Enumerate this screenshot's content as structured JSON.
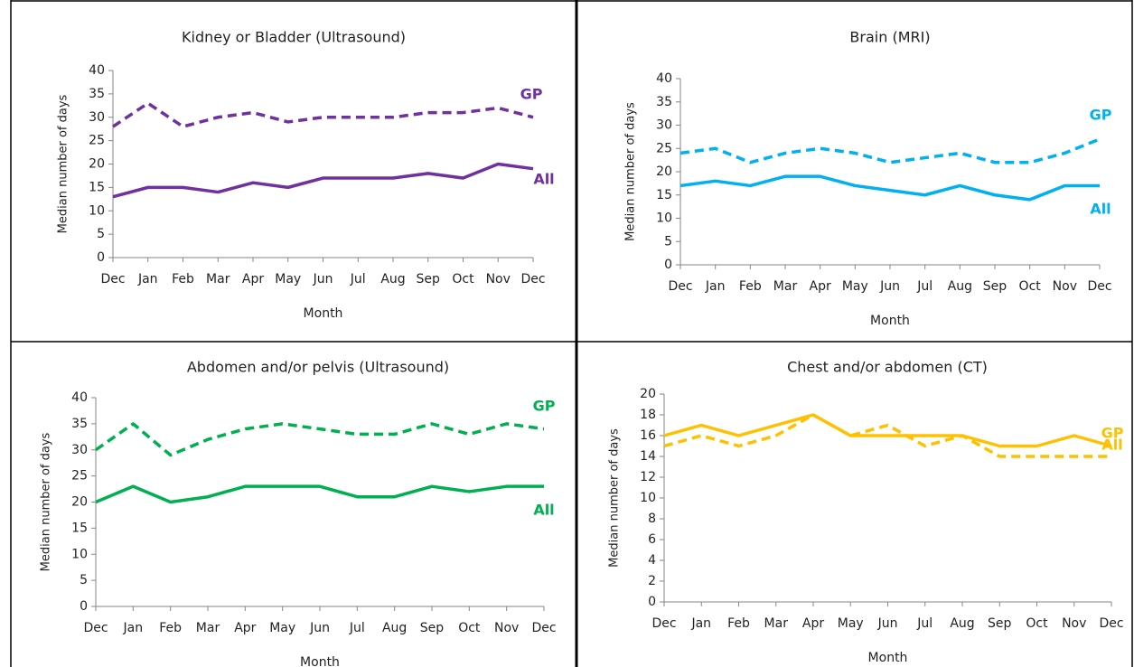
{
  "chart_data": [
    {
      "type": "line",
      "title": "Kidney or Bladder (Ultrasound)",
      "x_label": "Month",
      "y_label": "Median number of days",
      "categories": [
        "Dec",
        "Jan",
        "Feb",
        "Mar",
        "Apr",
        "May",
        "Jun",
        "Jul",
        "Aug",
        "Sep",
        "Oct",
        "Nov",
        "Dec"
      ],
      "ylim": [
        0,
        40
      ],
      "yticks": [
        0,
        5,
        10,
        15,
        20,
        25,
        30,
        35,
        40
      ],
      "series": [
        {
          "name": "GP",
          "color": "#7030a0",
          "line_style": "dashed",
          "values": [
            28,
            33,
            28,
            30,
            31,
            29,
            30,
            30,
            30,
            31,
            31,
            32,
            30
          ]
        },
        {
          "name": "All",
          "color": "#7030a0",
          "line_style": "solid",
          "values": [
            13,
            15,
            15,
            14,
            16,
            15,
            17,
            17,
            17,
            18,
            17,
            20,
            19
          ]
        }
      ]
    },
    {
      "type": "line",
      "title": "Brain (MRI)",
      "x_label": "Month",
      "y_label": "Median number of days",
      "categories": [
        "Dec",
        "Jan",
        "Feb",
        "Mar",
        "Apr",
        "May",
        "Jun",
        "Jul",
        "Aug",
        "Sep",
        "Oct",
        "Nov",
        "Dec"
      ],
      "ylim": [
        0,
        40
      ],
      "yticks": [
        0,
        5,
        10,
        15,
        20,
        25,
        30,
        35,
        40
      ],
      "series": [
        {
          "name": "GP",
          "color": "#00b0f0",
          "line_style": "dashed",
          "values": [
            24,
            25,
            22,
            24,
            25,
            24,
            22,
            23,
            24,
            22,
            22,
            24,
            27
          ]
        },
        {
          "name": "All",
          "color": "#00b0f0",
          "line_style": "solid",
          "values": [
            17,
            18,
            17,
            19,
            19,
            17,
            16,
            15,
            17,
            15,
            14,
            17,
            17
          ]
        }
      ]
    },
    {
      "type": "line",
      "title": "Abdomen and/or pelvis (Ultrasound)",
      "x_label": "Month",
      "y_label": "Median number of days",
      "categories": [
        "Dec",
        "Jan",
        "Feb",
        "Mar",
        "Apr",
        "May",
        "Jun",
        "Jul",
        "Aug",
        "Sep",
        "Oct",
        "Nov",
        "Dec"
      ],
      "ylim": [
        0,
        40
      ],
      "yticks": [
        0,
        5,
        10,
        15,
        20,
        25,
        30,
        35,
        40
      ],
      "series": [
        {
          "name": "GP",
          "color": "#00b050",
          "line_style": "dashed",
          "values": [
            30,
            35,
            29,
            32,
            34,
            35,
            34,
            33,
            33,
            35,
            33,
            35,
            34
          ]
        },
        {
          "name": "All",
          "color": "#00b050",
          "line_style": "solid",
          "values": [
            20,
            23,
            20,
            21,
            23,
            23,
            23,
            21,
            21,
            23,
            22,
            23,
            23
          ]
        }
      ]
    },
    {
      "type": "line",
      "title": "Chest and/or abdomen (CT)",
      "x_label": "Month",
      "y_label": "Median number of days",
      "categories": [
        "Dec",
        "Jan",
        "Feb",
        "Mar",
        "Apr",
        "May",
        "Jun",
        "Jul",
        "Aug",
        "Sep",
        "Oct",
        "Nov",
        "Dec"
      ],
      "ylim": [
        0,
        20
      ],
      "yticks": [
        0,
        2,
        4,
        6,
        8,
        10,
        12,
        14,
        16,
        18,
        20
      ],
      "series": [
        {
          "name": "GP",
          "color": "#ffc000",
          "line_style": "solid",
          "values": [
            16,
            17,
            16,
            17,
            18,
            16,
            16,
            16,
            16,
            15,
            15,
            16,
            15
          ]
        },
        {
          "name": "All",
          "color": "#ffc000",
          "line_style": "dashed",
          "values": [
            15,
            16,
            15,
            16,
            18,
            16,
            17,
            15,
            16,
            14,
            14,
            14,
            14
          ]
        }
      ]
    }
  ]
}
